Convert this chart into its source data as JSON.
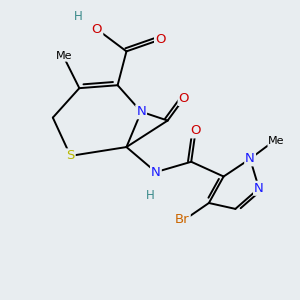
{
  "background_color": "#e8edf0",
  "figsize": [
    3.0,
    3.0
  ],
  "dpi": 100,
  "atom_colors": {
    "C": "#000000",
    "N": "#1a1aff",
    "O": "#cc0000",
    "S": "#b8b800",
    "H": "#3a8a8a",
    "Br": "#cc6600"
  },
  "bond_color": "#000000",
  "bond_width": 1.4,
  "font_size": 8.5,
  "bg": "#e8edf0"
}
